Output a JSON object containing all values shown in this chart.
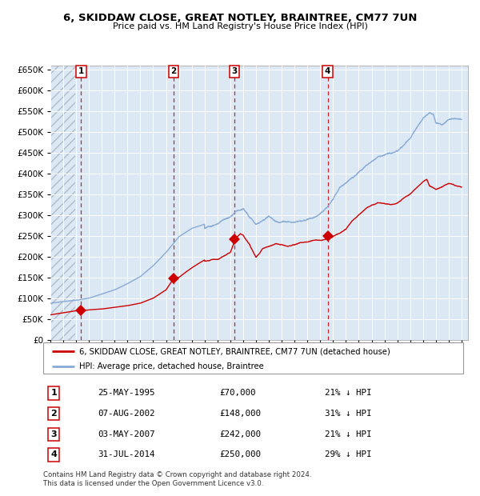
{
  "title": "6, SKIDDAW CLOSE, GREAT NOTLEY, BRAINTREE, CM77 7UN",
  "subtitle": "Price paid vs. HM Land Registry's House Price Index (HPI)",
  "sale_dates_num": [
    1995.396,
    2002.597,
    2007.336,
    2014.578
  ],
  "sale_prices": [
    70000,
    148000,
    242000,
    250000
  ],
  "sale_labels": [
    "1",
    "2",
    "3",
    "4"
  ],
  "legend_property": "6, SKIDDAW CLOSE, GREAT NOTLEY, BRAINTREE, CM77 7UN (detached house)",
  "legend_hpi": "HPI: Average price, detached house, Braintree",
  "footer1": "Contains HM Land Registry data © Crown copyright and database right 2024.",
  "footer2": "This data is licensed under the Open Government Licence v3.0.",
  "table_rows": [
    [
      "1",
      "25-MAY-1995",
      "£70,000",
      "21% ↓ HPI"
    ],
    [
      "2",
      "07-AUG-2002",
      "£148,000",
      "31% ↓ HPI"
    ],
    [
      "3",
      "03-MAY-2007",
      "£242,000",
      "21% ↓ HPI"
    ],
    [
      "4",
      "31-JUL-2014",
      "£250,000",
      "29% ↓ HPI"
    ]
  ],
  "property_color": "#cc0000",
  "hpi_color": "#88aad4",
  "background_color": "#dce9f5",
  "xlim_start": 1993.0,
  "xlim_end": 2025.5,
  "ylim_max": 660000,
  "yticks": [
    0,
    50000,
    100000,
    150000,
    200000,
    250000,
    300000,
    350000,
    400000,
    450000,
    500000,
    550000,
    600000,
    650000
  ]
}
